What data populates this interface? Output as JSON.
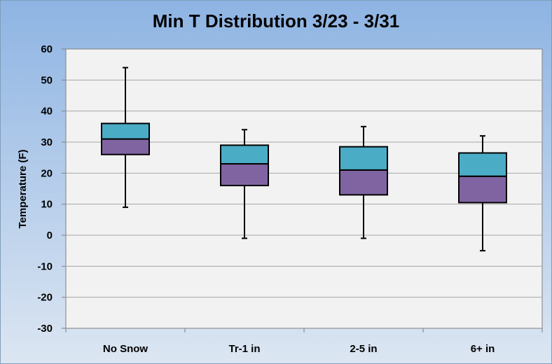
{
  "chart_data": {
    "type": "box",
    "title": "Min T Distribution  3/23 - 3/31",
    "xlabel": "",
    "ylabel": "Temperature (F)",
    "ylim": [
      -30,
      60
    ],
    "yticks": [
      60,
      50,
      40,
      30,
      20,
      10,
      0,
      -10,
      -20,
      -30
    ],
    "grid": true,
    "categories": [
      "No Snow",
      "Tr-1 in",
      "2-5 in",
      "6+ in"
    ],
    "boxes": [
      {
        "category": "No Snow",
        "min": 9,
        "q1": 26,
        "median": 31,
        "q3": 36,
        "max": 54
      },
      {
        "category": "Tr-1 in",
        "min": -1,
        "q1": 16,
        "median": 23,
        "q3": 29,
        "max": 34
      },
      {
        "category": "2-5 in",
        "min": -1,
        "q1": 13,
        "median": 21,
        "q3": 28.5,
        "max": 35
      },
      {
        "category": "6+ in",
        "min": -5,
        "q1": 10.5,
        "median": 19,
        "q3": 26.5,
        "max": 32
      }
    ],
    "colors": {
      "upper_box": "#4BACC6",
      "lower_box": "#8064A2",
      "background_top": "#8EB4E3",
      "background_bottom": "#DCE6F2",
      "plot_area": "#F2F2F2",
      "grid": "#A6A6A6"
    }
  }
}
